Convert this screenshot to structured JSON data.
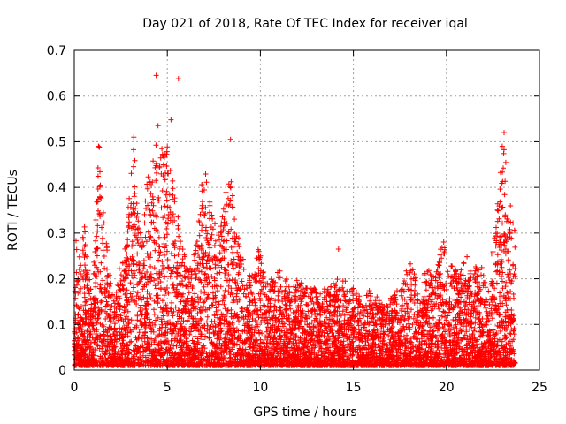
{
  "chart_data": {
    "type": "scatter",
    "title": "Day 021 of 2018, Rate Of TEC Index for receiver iqal",
    "xlabel": "GPS time / hours",
    "ylabel": "ROTI / TECUs",
    "xlim": [
      0,
      25
    ],
    "ylim": [
      0,
      0.7
    ],
    "x_ticks": [
      0,
      5,
      10,
      15,
      20,
      25
    ],
    "y_ticks": [
      0,
      0.1,
      0.2,
      0.3,
      0.4,
      0.5,
      0.6,
      0.7
    ],
    "x_tick_labels": [
      "0",
      "5",
      "10",
      "15",
      "20",
      "25"
    ],
    "y_tick_labels": [
      "0",
      "0.1",
      "0.2",
      "0.3",
      "0.4",
      "0.5",
      "0.6",
      "0.7"
    ],
    "grid": true,
    "marker": "plus",
    "marker_color": "#ff0000",
    "series": [
      {
        "name": "ROTI",
        "envelope_x": [
          0,
          0.1,
          0.2,
          0.5,
          0.8,
          1.0,
          1.3,
          1.6,
          1.9,
          2.2,
          2.5,
          2.8,
          3.0,
          3.2,
          3.4,
          3.6,
          3.9,
          4.2,
          4.4,
          4.6,
          4.9,
          5.1,
          5.4,
          5.7,
          6.0,
          6.3,
          6.6,
          6.9,
          7.2,
          7.5,
          7.8,
          8.1,
          8.4,
          8.7,
          9.0,
          9.3,
          9.6,
          9.9,
          10.2,
          10.5,
          10.8,
          11.1,
          11.4,
          11.7,
          12.0,
          12.5,
          13.0,
          13.5,
          14.0,
          14.5,
          15.0,
          15.5,
          16.0,
          16.5,
          17.0,
          17.5,
          18.0,
          18.5,
          19.0,
          19.5,
          19.8,
          20.1,
          20.5,
          21.0,
          21.4,
          21.8,
          22.2,
          22.6,
          22.9,
          23.1,
          23.3,
          23.5,
          23.7
        ],
        "envelope_y": [
          0.12,
          0.3,
          0.22,
          0.35,
          0.2,
          0.18,
          0.48,
          0.35,
          0.22,
          0.15,
          0.26,
          0.3,
          0.42,
          0.5,
          0.36,
          0.3,
          0.42,
          0.45,
          0.5,
          0.48,
          0.52,
          0.46,
          0.4,
          0.3,
          0.24,
          0.22,
          0.3,
          0.44,
          0.42,
          0.36,
          0.3,
          0.38,
          0.44,
          0.32,
          0.26,
          0.2,
          0.22,
          0.28,
          0.22,
          0.2,
          0.2,
          0.24,
          0.2,
          0.18,
          0.2,
          0.18,
          0.18,
          0.18,
          0.2,
          0.2,
          0.18,
          0.16,
          0.18,
          0.15,
          0.16,
          0.18,
          0.24,
          0.2,
          0.22,
          0.22,
          0.3,
          0.24,
          0.22,
          0.26,
          0.22,
          0.24,
          0.2,
          0.3,
          0.44,
          0.5,
          0.4,
          0.38,
          0.3
        ],
        "floor_y": 0.01,
        "outliers": [
          {
            "x": 4.4,
            "y": 0.645
          },
          {
            "x": 5.6,
            "y": 0.638
          },
          {
            "x": 5.2,
            "y": 0.548
          },
          {
            "x": 4.5,
            "y": 0.535
          },
          {
            "x": 1.3,
            "y": 0.49
          },
          {
            "x": 1.35,
            "y": 0.488
          },
          {
            "x": 8.4,
            "y": 0.505
          },
          {
            "x": 23.1,
            "y": 0.52
          },
          {
            "x": 23.0,
            "y": 0.49
          },
          {
            "x": 3.2,
            "y": 0.51
          },
          {
            "x": 14.2,
            "y": 0.265
          },
          {
            "x": 1.4,
            "y": 0.405
          }
        ]
      }
    ]
  }
}
